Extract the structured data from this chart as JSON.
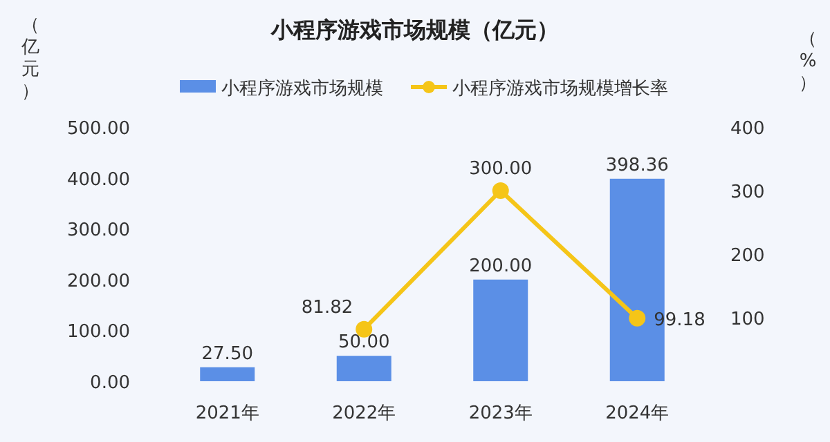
{
  "chart_data": {
    "type": "bar",
    "title": "小程序游戏市场规模（亿元）",
    "ylabel": "（亿元）",
    "y2label": "（%）",
    "categories": [
      "2021年",
      "2022年",
      "2023年",
      "2024年"
    ],
    "series": [
      {
        "name": "小程序游戏市场规模",
        "color": "#5b8fe6",
        "values": [
          27.5,
          50.0,
          200.0,
          398.36
        ],
        "value_labels": [
          "27.50",
          "50.00",
          "200.00",
          "398.36"
        ]
      },
      {
        "name": "小程序游戏市场规模增长率",
        "type": "line",
        "axis": "y2",
        "color": "#f5c518",
        "marker": "circle",
        "values": [
          null,
          81.82,
          300.0,
          99.18
        ],
        "value_labels": [
          null,
          "81.82",
          "300.00",
          "99.18"
        ]
      }
    ],
    "ylim": [
      0,
      500
    ],
    "yticks": [
      {
        "value": 0,
        "label": "0.00"
      },
      {
        "value": 100,
        "label": "100.00"
      },
      {
        "value": 200,
        "label": "200.00"
      },
      {
        "value": 300,
        "label": "300.00"
      },
      {
        "value": 400,
        "label": "400.00"
      },
      {
        "value": 500,
        "label": "500.00"
      }
    ],
    "y2lim": [
      0,
      400
    ],
    "y2ticks": [
      100,
      200,
      300,
      400
    ],
    "legend": "top",
    "grid": false
  }
}
